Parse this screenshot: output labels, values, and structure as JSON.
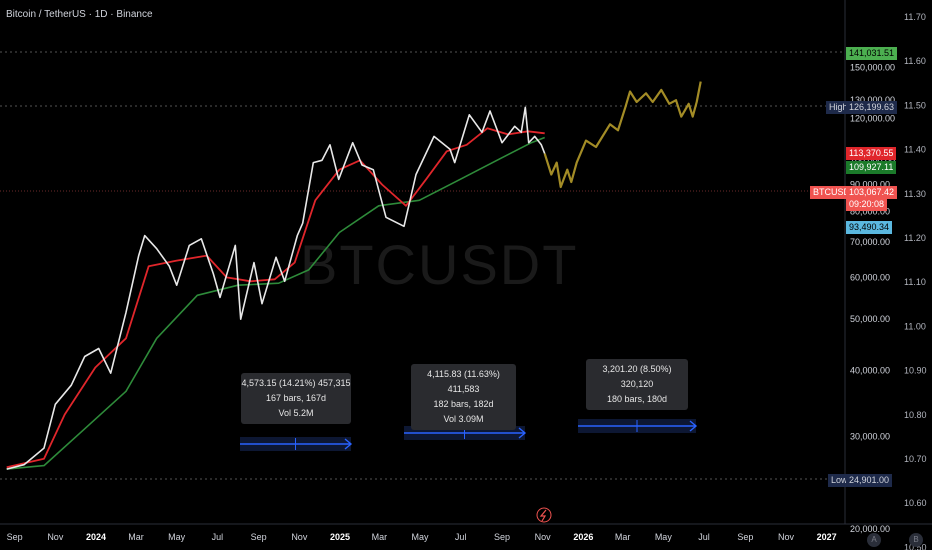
{
  "header": {
    "title": "Bitcoin / TetherUS · 1D · Binance"
  },
  "watermark": "BTCUSDT",
  "colors": {
    "price_line": "#e8e8e8",
    "ema_red": "#e0262b",
    "ema_green": "#2e8b3a",
    "projection": "#b59b2a",
    "arrow": "#2962ff"
  },
  "chart_data": {
    "type": "line",
    "title": "Bitcoin / TetherUS · 1D · Binance",
    "price_axis": {
      "ticks": [
        "150,000.00",
        "130,000.00",
        "120,000.00",
        "100,000.00",
        "90,000.00",
        "80,000.00",
        "70,000.00",
        "60,000.00",
        "50,000.00",
        "40,000.00",
        "30,000.00",
        "20,000.00"
      ]
    },
    "log_axis": {
      "ticks": [
        "11.70",
        "11.60",
        "11.50",
        "11.40",
        "11.30",
        "11.20",
        "11.10",
        "11.00",
        "10.90",
        "10.80",
        "10.70",
        "10.60",
        "10.50"
      ]
    },
    "time_axis": {
      "ticks": [
        "Sep",
        "Nov",
        "2024",
        "Mar",
        "May",
        "Jul",
        "Sep",
        "Nov",
        "2025",
        "Mar",
        "May",
        "Jul",
        "Sep",
        "Nov",
        "2026",
        "Mar",
        "May",
        "Jul",
        "Sep",
        "Nov",
        "2027"
      ],
      "bold": [
        "2024",
        "2025",
        "2026",
        "2027"
      ]
    },
    "price_tags": [
      {
        "label": "141,031.51",
        "kind": "projection-top"
      },
      {
        "label": "126,199.63",
        "caption": "High"
      },
      {
        "label": "113,370.55",
        "kind": "ema-red"
      },
      {
        "label": "109,927.11",
        "kind": "ema-green"
      },
      {
        "label": "103,067.42",
        "caption": "BTCUSDT",
        "sub": "09:20:08"
      },
      {
        "label": "93,490.34",
        "kind": "level"
      },
      {
        "label": "24,901.00",
        "caption": "Low"
      }
    ],
    "series": [
      {
        "name": "BTCUSDT",
        "points": [
          [
            "2023-08-20",
            26000
          ],
          [
            "2023-09-15",
            26500
          ],
          [
            "2023-10-15",
            28500
          ],
          [
            "2023-11-01",
            34500
          ],
          [
            "2023-11-25",
            37500
          ],
          [
            "2023-12-15",
            42500
          ],
          [
            "2024-01-05",
            44000
          ],
          [
            "2024-01-23",
            39500
          ],
          [
            "2024-02-15",
            51500
          ],
          [
            "2024-03-05",
            66000
          ],
          [
            "2024-03-14",
            72000
          ],
          [
            "2024-04-01",
            68000
          ],
          [
            "2024-04-20",
            63000
          ],
          [
            "2024-05-01",
            58000
          ],
          [
            "2024-05-20",
            69000
          ],
          [
            "2024-06-07",
            71000
          ],
          [
            "2024-06-25",
            61000
          ],
          [
            "2024-07-05",
            55000
          ],
          [
            "2024-07-28",
            69000
          ],
          [
            "2024-08-05",
            50000
          ],
          [
            "2024-08-25",
            64000
          ],
          [
            "2024-09-06",
            53500
          ],
          [
            "2024-09-27",
            65500
          ],
          [
            "2024-10-10",
            59000
          ],
          [
            "2024-10-29",
            72000
          ],
          [
            "2024-11-06",
            76000
          ],
          [
            "2024-11-22",
            99000
          ],
          [
            "2024-12-05",
            100000
          ],
          [
            "2024-12-17",
            107000
          ],
          [
            "2024-12-30",
            92000
          ],
          [
            "2025-01-20",
            108000
          ],
          [
            "2025-02-03",
            98000
          ],
          [
            "2025-02-20",
            96000
          ],
          [
            "2025-03-03",
            85000
          ],
          [
            "2025-03-11",
            78000
          ],
          [
            "2025-04-07",
            75000
          ],
          [
            "2025-04-25",
            94000
          ],
          [
            "2025-05-22",
            111000
          ],
          [
            "2025-06-15",
            105000
          ],
          [
            "2025-06-22",
            99000
          ],
          [
            "2025-07-14",
            122000
          ],
          [
            "2025-08-02",
            113000
          ],
          [
            "2025-08-14",
            124000
          ],
          [
            "2025-09-01",
            108000
          ],
          [
            "2025-09-20",
            116000
          ],
          [
            "2025-09-30",
            113000
          ],
          [
            "2025-10-06",
            126000
          ],
          [
            "2025-10-11",
            108000
          ],
          [
            "2025-10-20",
            111000
          ],
          [
            "2025-10-30",
            107000
          ],
          [
            "2025-11-04",
            103000
          ]
        ]
      },
      {
        "name": "EMA",
        "points": [
          [
            "2023-08-20",
            26200
          ],
          [
            "2023-10-15",
            27200
          ],
          [
            "2023-11-15",
            33000
          ],
          [
            "2023-12-31",
            40500
          ],
          [
            "2024-02-15",
            46000
          ],
          [
            "2024-03-20",
            63000
          ],
          [
            "2024-04-30",
            64500
          ],
          [
            "2024-06-15",
            66000
          ],
          [
            "2024-07-15",
            60000
          ],
          [
            "2024-08-20",
            59000
          ],
          [
            "2024-09-25",
            59500
          ],
          [
            "2024-10-25",
            64000
          ],
          [
            "2024-11-25",
            84000
          ],
          [
            "2024-12-31",
            96000
          ],
          [
            "2025-01-31",
            100000
          ],
          [
            "2025-03-05",
            90000
          ],
          [
            "2025-04-10",
            82000
          ],
          [
            "2025-05-10",
            92000
          ],
          [
            "2025-06-10",
            104000
          ],
          [
            "2025-07-10",
            107000
          ],
          [
            "2025-08-10",
            115000
          ],
          [
            "2025-09-10",
            112000
          ],
          [
            "2025-10-10",
            113500
          ],
          [
            "2025-11-04",
            112500
          ]
        ]
      },
      {
        "name": "SMA",
        "points": [
          [
            "2023-08-20",
            26000
          ],
          [
            "2023-10-15",
            26400
          ],
          [
            "2023-12-15",
            31000
          ],
          [
            "2024-02-15",
            36500
          ],
          [
            "2024-04-01",
            46000
          ],
          [
            "2024-06-01",
            55500
          ],
          [
            "2024-08-01",
            58000
          ],
          [
            "2024-10-01",
            58500
          ],
          [
            "2024-11-15",
            62000
          ],
          [
            "2024-12-31",
            73000
          ],
          [
            "2025-02-28",
            82000
          ],
          [
            "2025-04-30",
            84000
          ],
          [
            "2025-06-30",
            92000
          ],
          [
            "2025-08-31",
            101000
          ],
          [
            "2025-10-15",
            108000
          ],
          [
            "2025-11-04",
            110500
          ]
        ]
      },
      {
        "name": "Projection",
        "points": [
          [
            "2025-11-04",
            103000
          ],
          [
            "2025-11-14",
            94000
          ],
          [
            "2025-11-22",
            99000
          ],
          [
            "2025-11-28",
            89000
          ],
          [
            "2025-12-08",
            96000
          ],
          [
            "2025-12-14",
            91000
          ],
          [
            "2025-12-22",
            99000
          ],
          [
            "2026-01-05",
            109000
          ],
          [
            "2026-01-20",
            106000
          ],
          [
            "2026-02-10",
            117000
          ],
          [
            "2026-02-22",
            114000
          ],
          [
            "2026-03-05",
            126000
          ],
          [
            "2026-03-12",
            135000
          ],
          [
            "2026-03-22",
            129000
          ],
          [
            "2026-04-05",
            134000
          ],
          [
            "2026-04-15",
            129000
          ],
          [
            "2026-04-28",
            136000
          ],
          [
            "2026-05-10",
            128000
          ],
          [
            "2026-05-20",
            130000
          ],
          [
            "2026-05-28",
            121000
          ],
          [
            "2026-06-08",
            128000
          ],
          [
            "2026-06-14",
            121000
          ],
          [
            "2026-06-20",
            129000
          ],
          [
            "2026-06-26",
            141000
          ]
        ]
      }
    ],
    "measurements": [
      {
        "line1": "4,573.15 (14.21%) 457,315",
        "line2": "167 bars, 167d",
        "line3": "Vol 5.2M"
      },
      {
        "line1": "4,115.83 (11.63%) 411,583",
        "line2": "182 bars, 182d",
        "line3": "Vol 3.09M"
      },
      {
        "line1": "3,201.20 (8.50%) 320,120",
        "line2": "180 bars, 180d",
        "line3": ""
      }
    ],
    "grid": false
  },
  "footer": {
    "left_button": "A",
    "right_button": "B"
  }
}
